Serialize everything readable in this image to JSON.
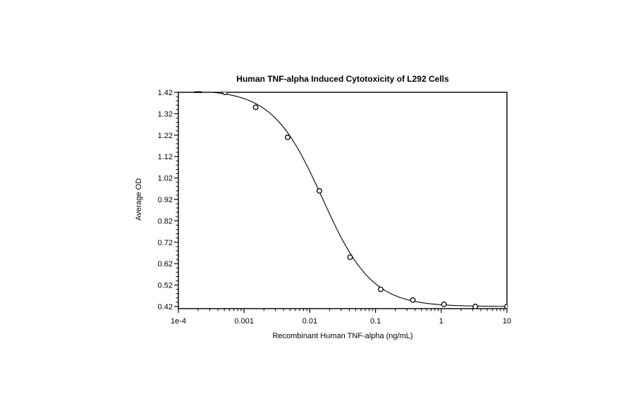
{
  "chart_data": {
    "type": "scatter",
    "title": "Human TNF-alpha Induced Cytotoxicity of L292 Cells",
    "xlabel": "Recombinant Human TNF-alpha (ng/mL)",
    "ylabel": "Average OD",
    "x_scale": "log10",
    "xlim": [
      0.0001,
      10
    ],
    "ylim": [
      0.42,
      1.42
    ],
    "x_ticks": [
      0.0001,
      0.001,
      0.01,
      0.1,
      1,
      10
    ],
    "x_tick_labels": [
      "1e-4",
      "0.001",
      "0.01",
      "0.1",
      "1",
      "10"
    ],
    "y_ticks": [
      1.42,
      1.32,
      1.22,
      1.12,
      1.02,
      0.92,
      0.82,
      0.72,
      0.62,
      0.52,
      0.42
    ],
    "y_minor_step": 0.02,
    "grid": false,
    "legend": null,
    "marker": "open-circle",
    "colors": {
      "line": "#000000",
      "marker_stroke": "#000000",
      "marker_fill": "#ffffff",
      "text": "#000000",
      "background": "#ffffff"
    },
    "points": [
      {
        "conc": 0.0002,
        "od": 1.43
      },
      {
        "conc": 0.00051,
        "od": 1.42
      },
      {
        "conc": 0.0015,
        "od": 1.35
      },
      {
        "conc": 0.0046,
        "od": 1.21
      },
      {
        "conc": 0.014,
        "od": 0.96
      },
      {
        "conc": 0.041,
        "od": 0.65
      },
      {
        "conc": 0.12,
        "od": 0.5
      },
      {
        "conc": 0.37,
        "od": 0.45
      },
      {
        "conc": 1.1,
        "od": 0.43
      },
      {
        "conc": 3.3,
        "od": 0.42
      },
      {
        "conc": 10,
        "od": 0.42
      }
    ],
    "fit_curve": {
      "model": "4PL",
      "top": 1.432,
      "bottom": 0.42,
      "ec50": 0.0155,
      "hill": 1.15
    }
  }
}
